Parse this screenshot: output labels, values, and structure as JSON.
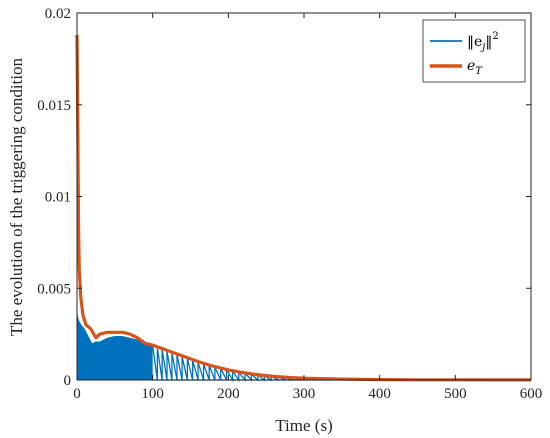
{
  "chart_data": {
    "type": "line",
    "xlabel": "Time (s)",
    "ylabel": "The evolution of the triggering condition",
    "xlim": [
      0,
      600
    ],
    "ylim": [
      0,
      0.02
    ],
    "x_ticks": [
      0,
      100,
      200,
      300,
      400,
      500,
      600
    ],
    "x_tick_labels": [
      "0",
      "100",
      "200",
      "300",
      "400",
      "500",
      "600"
    ],
    "y_ticks": [
      0,
      0.005,
      0.01,
      0.015,
      0.02
    ],
    "y_tick_labels": [
      "0",
      "0.005",
      "0.01",
      "0.015",
      "0.02"
    ],
    "grid": false,
    "legend_position": "top-right",
    "colors": {
      "ej": "#0072BD",
      "eT": "#D95319"
    },
    "series": [
      {
        "name": "‖e_j‖²",
        "style": "dense sawtooth below threshold",
        "color": "#0072BD",
        "x": [
          0,
          1,
          3,
          6,
          10,
          15,
          20,
          25,
          30,
          40,
          50,
          60,
          70,
          80,
          90,
          100
        ],
        "y": [
          0.0037,
          0.0035,
          0.0032,
          0.003,
          0.0028,
          0.0024,
          0.002,
          0.0021,
          0.0021,
          0.0023,
          0.0024,
          0.0024,
          0.0023,
          0.0022,
          0.002,
          0.0019
        ]
      },
      {
        "name": "e_T",
        "color": "#D95319",
        "x": [
          0,
          1,
          2,
          3,
          5,
          8,
          12,
          18,
          25,
          30,
          40,
          50,
          60,
          70,
          80,
          90,
          100,
          120,
          140,
          160,
          180,
          200,
          220,
          240,
          260,
          280,
          300,
          350,
          400,
          450,
          500,
          550,
          600
        ],
        "y": [
          0.0188,
          0.014,
          0.0085,
          0.006,
          0.0045,
          0.0035,
          0.003,
          0.0028,
          0.0023,
          0.0025,
          0.0026,
          0.0026,
          0.0026,
          0.0025,
          0.0023,
          0.002,
          0.0019,
          0.0016,
          0.0013,
          0.001,
          0.00075,
          0.00055,
          0.0004,
          0.00028,
          0.0002,
          0.00014,
          0.0001,
          5e-05,
          2e-05,
          1e-05,
          1e-05,
          5e-06,
          5e-06
        ]
      }
    ],
    "legend": [
      {
        "label_main": "‖e",
        "label_sub": "j",
        "label_tail": "‖",
        "label_sup": "2"
      },
      {
        "label_main": "e",
        "label_sub": "T",
        "label_tail": "",
        "label_sup": ""
      }
    ]
  }
}
